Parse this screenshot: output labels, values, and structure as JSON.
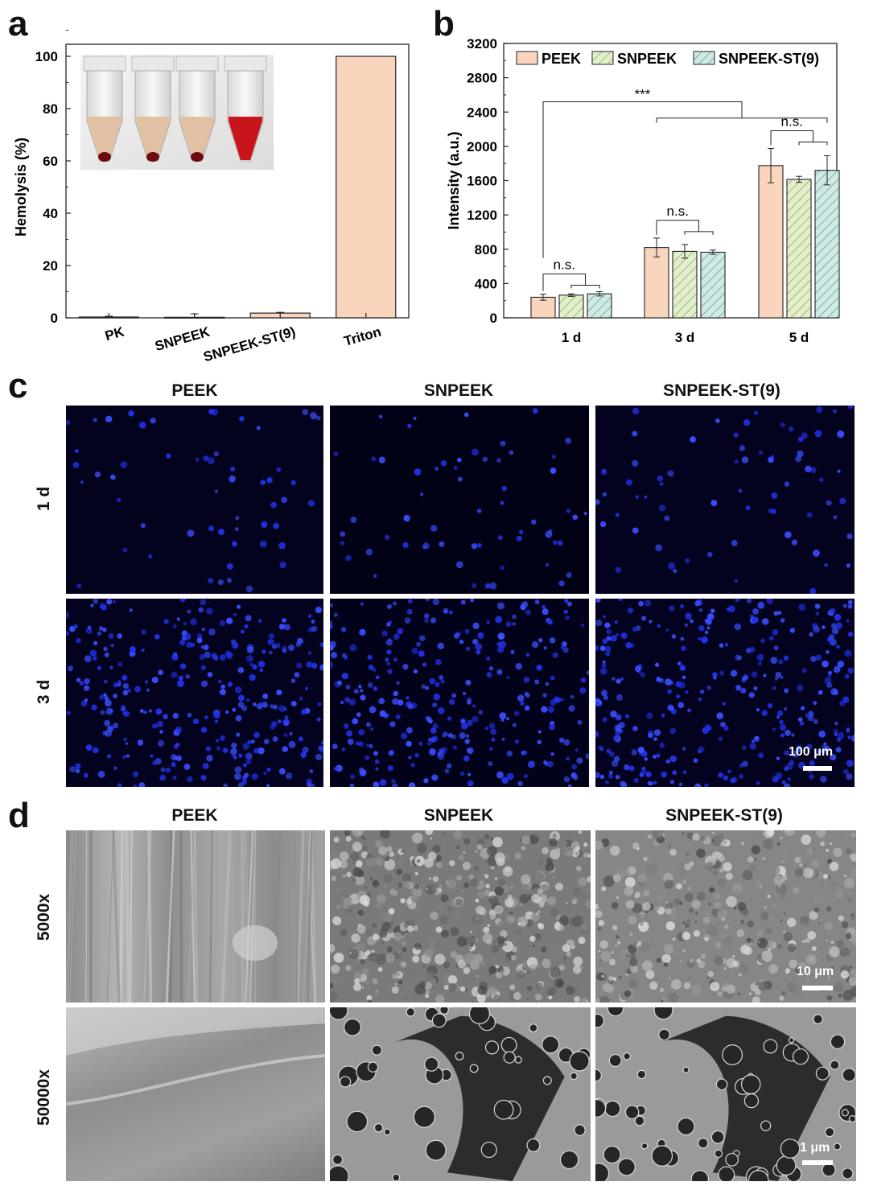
{
  "panels": {
    "a": {
      "letter": "a"
    },
    "b": {
      "letter": "b"
    },
    "c": {
      "letter": "c"
    },
    "d": {
      "letter": "d"
    }
  },
  "chart_data": [
    {
      "panel": "a",
      "type": "bar",
      "ylabel": "Hemolysis (%)",
      "xlabel": "",
      "categories": [
        "PK",
        "SNPEEK",
        "SNPEEK-ST(9)",
        "Triton"
      ],
      "values": [
        0.3,
        0.2,
        1.8,
        100
      ],
      "errors": [
        0.3,
        1.3,
        0.3,
        0
      ],
      "ylim": [
        0,
        100
      ],
      "yticks": [
        "0",
        "20",
        "40",
        "60",
        "80",
        "100"
      ],
      "bar_color": "#f9d5bd",
      "inset": "photo of four tubes: three pale supernatant with red pellet, one fully red (Triton)"
    },
    {
      "panel": "b",
      "type": "bar",
      "ylabel": "Intensity (a.u.)",
      "xlabel": "",
      "categories": [
        "1 d",
        "3 d",
        "5 d"
      ],
      "series": [
        {
          "name": "PEEK",
          "values": [
            240,
            820,
            1775
          ],
          "errors": [
            35,
            110,
            200
          ],
          "color": "#f9d5bd",
          "hatch": "none"
        },
        {
          "name": "SNPEEK",
          "values": [
            265,
            775,
            1615
          ],
          "errors": [
            15,
            80,
            35
          ],
          "color": "#e3efcb",
          "hatch": "diagonal"
        },
        {
          "name": "SNPEEK-ST(9)",
          "values": [
            280,
            765,
            1720
          ],
          "errors": [
            25,
            25,
            170
          ],
          "color": "#cfeae6",
          "hatch": "diagonal"
        }
      ],
      "ylim": [
        0,
        3200
      ],
      "yticks": [
        "0",
        "400",
        "800",
        "1200",
        "1600",
        "2000",
        "2400",
        "2800",
        "3200"
      ],
      "legend_position": "top",
      "annotations": [
        "n.s.",
        "n.s.",
        "n.s.",
        "***"
      ]
    }
  ],
  "panel_c": {
    "columns": [
      "PEEK",
      "SNPEEK",
      "SNPEEK-ST(9)"
    ],
    "rows": [
      "1 d",
      "3 d"
    ],
    "scalebar": "100 μm"
  },
  "panel_d": {
    "columns": [
      "PEEK",
      "SNPEEK",
      "SNPEEK-ST(9)"
    ],
    "rows": [
      "5000x",
      "50000x"
    ],
    "scalebar_top": "10 μm",
    "scalebar_bottom": "1 μm"
  }
}
